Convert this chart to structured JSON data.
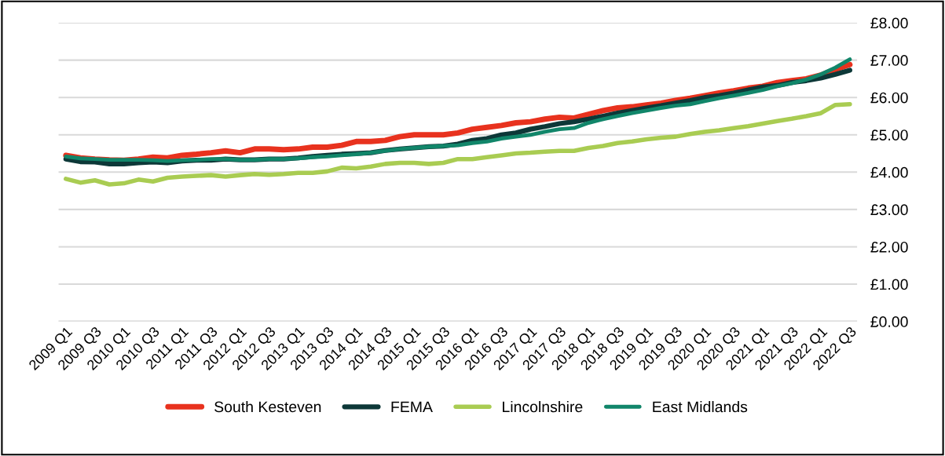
{
  "chart_data": {
    "type": "line",
    "categories": [
      "2009 Q1",
      null,
      "2009 Q3",
      null,
      "2010 Q1",
      null,
      "2010 Q3",
      null,
      "2011 Q1",
      null,
      "2011 Q3",
      null,
      "2012 Q1",
      null,
      "2012 Q3",
      null,
      "2013 Q1",
      null,
      "2013 Q3",
      null,
      "2014 Q1",
      null,
      "2014 Q3",
      null,
      "2015 Q1",
      null,
      "2015 Q3",
      null,
      "2016 Q1",
      null,
      "2016 Q3",
      null,
      "2017 Q1",
      null,
      "2017 Q3",
      null,
      "2018 Q1",
      null,
      "2018 Q3",
      null,
      "2019 Q1",
      null,
      "2019 Q3",
      null,
      "2020 Q1",
      null,
      "2020 Q3",
      null,
      "2021 Q1",
      null,
      "2021 Q3",
      null,
      "2022 Q1",
      null,
      "2022 Q3"
    ],
    "series": [
      {
        "name": "South Kesteven",
        "color": "#e8321e",
        "values": [
          4.45,
          4.38,
          4.35,
          4.33,
          4.32,
          4.35,
          4.4,
          4.38,
          4.45,
          4.48,
          4.52,
          4.57,
          4.52,
          4.62,
          4.62,
          4.6,
          4.62,
          4.67,
          4.67,
          4.72,
          4.82,
          4.82,
          4.85,
          4.95,
          5.0,
          5.0,
          5.0,
          5.05,
          5.15,
          5.2,
          5.25,
          5.32,
          5.35,
          5.42,
          5.47,
          5.45,
          5.55,
          5.65,
          5.72,
          5.75,
          5.8,
          5.85,
          5.92,
          5.98,
          6.05,
          6.12,
          6.18,
          6.25,
          6.3,
          6.4,
          6.45,
          6.5,
          6.6,
          6.75,
          6.88
        ]
      },
      {
        "name": "FEMA",
        "color": "#0d3838",
        "values": [
          4.35,
          4.28,
          4.27,
          4.22,
          4.22,
          4.25,
          4.27,
          4.25,
          4.3,
          4.32,
          4.32,
          4.35,
          4.33,
          4.33,
          4.35,
          4.35,
          4.38,
          4.42,
          4.45,
          4.48,
          4.5,
          4.52,
          4.58,
          4.62,
          4.65,
          4.68,
          4.7,
          4.75,
          4.85,
          4.9,
          5.0,
          5.05,
          5.15,
          5.22,
          5.3,
          5.35,
          5.42,
          5.5,
          5.58,
          5.65,
          5.72,
          5.78,
          5.85,
          5.92,
          6.0,
          6.05,
          6.12,
          6.2,
          6.28,
          6.32,
          6.4,
          6.45,
          6.52,
          6.62,
          6.73
        ]
      },
      {
        "name": "Lincolnshire",
        "color": "#a9cc52",
        "values": [
          3.82,
          3.72,
          3.78,
          3.67,
          3.7,
          3.8,
          3.75,
          3.85,
          3.88,
          3.9,
          3.92,
          3.88,
          3.92,
          3.95,
          3.93,
          3.95,
          3.98,
          3.98,
          4.02,
          4.12,
          4.1,
          4.15,
          4.22,
          4.25,
          4.25,
          4.22,
          4.25,
          4.35,
          4.35,
          4.4,
          4.45,
          4.5,
          4.52,
          4.55,
          4.57,
          4.57,
          4.65,
          4.7,
          4.78,
          4.82,
          4.88,
          4.92,
          4.95,
          5.02,
          5.08,
          5.12,
          5.18,
          5.23,
          5.3,
          5.37,
          5.43,
          5.5,
          5.58,
          5.8,
          5.82
        ]
      },
      {
        "name": "East Midlands",
        "color": "#11866a",
        "values": [
          4.42,
          4.37,
          4.35,
          4.33,
          4.33,
          4.33,
          4.32,
          4.3,
          4.32,
          4.33,
          4.35,
          4.35,
          4.33,
          4.33,
          4.35,
          4.35,
          4.37,
          4.4,
          4.42,
          4.45,
          4.48,
          4.52,
          4.57,
          4.62,
          4.65,
          4.68,
          4.7,
          4.72,
          4.78,
          4.82,
          4.9,
          4.95,
          5.0,
          5.08,
          5.15,
          5.18,
          5.32,
          5.42,
          5.5,
          5.58,
          5.65,
          5.72,
          5.78,
          5.82,
          5.9,
          5.98,
          6.05,
          6.12,
          6.2,
          6.3,
          6.38,
          6.48,
          6.62,
          6.8,
          7.02
        ]
      }
    ],
    "ylim": [
      0,
      8
    ],
    "yticks": [
      {
        "value": 0,
        "label": "£0.00"
      },
      {
        "value": 1,
        "label": "£1.00"
      },
      {
        "value": 2,
        "label": "£2.00"
      },
      {
        "value": 3,
        "label": "£3.00"
      },
      {
        "value": 4,
        "label": "£4.00"
      },
      {
        "value": 5,
        "label": "£5.00"
      },
      {
        "value": 6,
        "label": "£6.00"
      },
      {
        "value": 7,
        "label": "£7.00"
      },
      {
        "value": 8,
        "label": "£8.00"
      }
    ],
    "grid": "y",
    "legend": "bottom",
    "marker": "none",
    "line_style": "solid"
  }
}
